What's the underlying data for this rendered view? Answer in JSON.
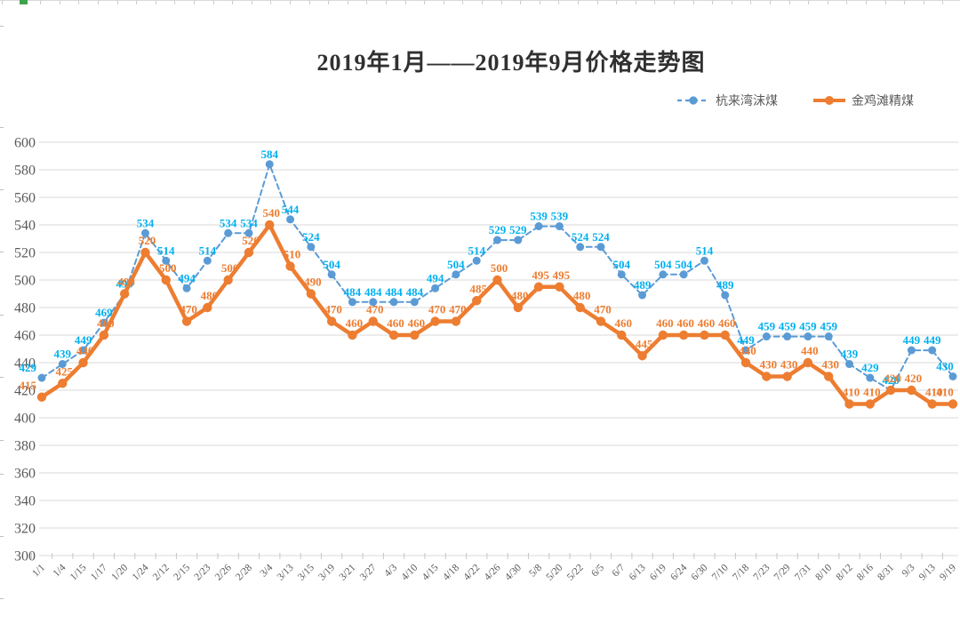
{
  "title": "2019年1月——2019年9月价格走势图",
  "legend": [
    {
      "label": "杭来湾沫煤",
      "color": "#5B9BD5",
      "line_style": "dashed"
    },
    {
      "label": "金鸡滩精煤",
      "color": "#ED7D31",
      "line_style": "solid"
    }
  ],
  "decor": {
    "edge_tick_color": "#cccccc",
    "green_tick_color": "#3fa34d"
  },
  "chart_data": {
    "type": "line",
    "title": "2019年1月——2019年9月价格走势图",
    "categories": [
      "1/1",
      "1/4",
      "1/15",
      "1/17",
      "1/20",
      "1/24",
      "2/12",
      "2/15",
      "2/23",
      "2/26",
      "2/28",
      "3/4",
      "3/13",
      "3/15",
      "3/19",
      "3/21",
      "3/27",
      "4/3",
      "4/10",
      "4/15",
      "4/18",
      "4/22",
      "4/26",
      "4/30",
      "5/8",
      "5/20",
      "5/22",
      "6/5",
      "6/7",
      "6/13",
      "6/19",
      "6/24",
      "6/30",
      "7/10",
      "7/18",
      "7/23",
      "7/29",
      "7/31",
      "8/10",
      "8/12",
      "8/16",
      "8/31",
      "9/3",
      "9/13",
      "9/19"
    ],
    "series": [
      {
        "name": "杭来湾沫煤",
        "color": "#5B9BD5",
        "label_color": "#00B0F0",
        "dash": true,
        "marker": "circle",
        "values": [
          429,
          439,
          449,
          469,
          490,
          534,
          514,
          494,
          514,
          534,
          534,
          584,
          544,
          524,
          504,
          484,
          484,
          484,
          484,
          494,
          504,
          514,
          529,
          529,
          539,
          539,
          524,
          524,
          504,
          489,
          504,
          504,
          514,
          489,
          449,
          459,
          459,
          459,
          459,
          439,
          429,
          420,
          449,
          449,
          430
        ]
      },
      {
        "name": "金鸡滩精煤",
        "color": "#ED7D31",
        "label_color": "#ED7D31",
        "dash": false,
        "marker": "circle",
        "values": [
          415,
          425,
          440,
          460,
          490,
          520,
          500,
          470,
          480,
          500,
          520,
          540,
          510,
          490,
          470,
          460,
          470,
          460,
          460,
          470,
          470,
          485,
          500,
          480,
          495,
          495,
          480,
          470,
          460,
          445,
          460,
          460,
          460,
          460,
          440,
          430,
          430,
          440,
          430,
          410,
          410,
          420,
          420,
          410,
          410
        ]
      }
    ],
    "ylabel": "",
    "xlabel": "",
    "ylim": [
      300,
      600
    ],
    "ytick_step": 20,
    "yticks": [
      300,
      320,
      340,
      360,
      380,
      400,
      420,
      440,
      460,
      480,
      500,
      520,
      540,
      560,
      580,
      600
    ],
    "grid": true,
    "gridline_color": "#D9D9D9",
    "data_labels": true,
    "legend_position": "top-right",
    "x_label_rotation": -45
  }
}
